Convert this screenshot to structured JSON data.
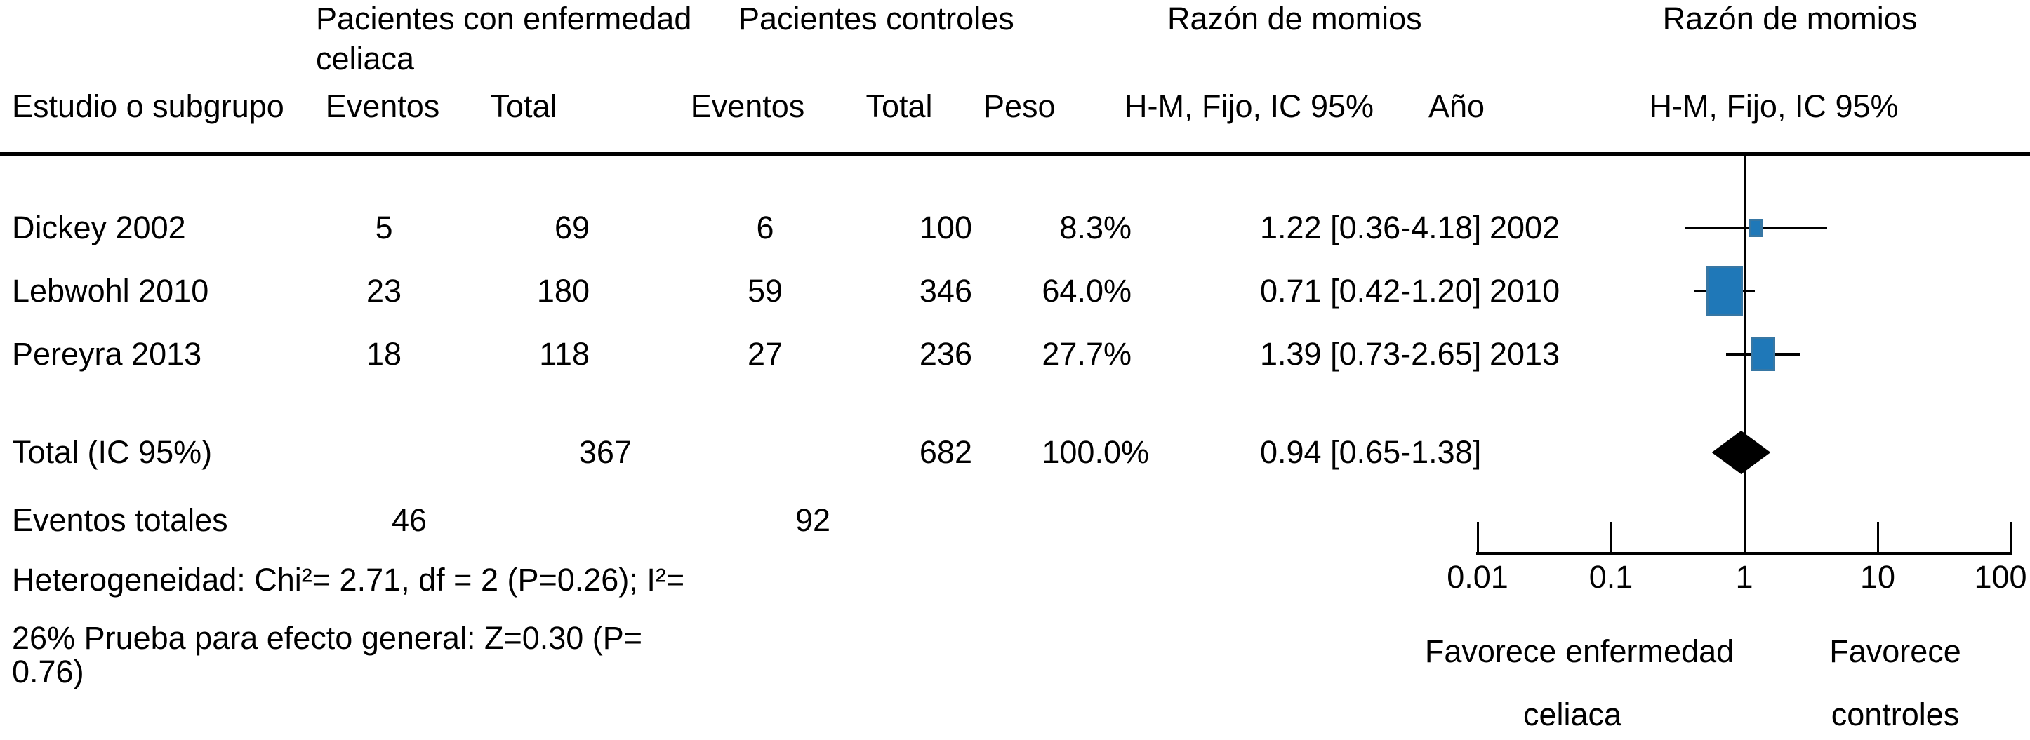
{
  "header": {
    "group_celiac_line1": "Pacientes con enfermedad",
    "group_celiac_line2": "celiaca",
    "group_control": "Pacientes controles",
    "or_title_left": "Razón de momios",
    "or_title_right": "Razón de momios",
    "study": "Estudio o subgrupo",
    "events_celiac": "Eventos",
    "total_celiac": "Total",
    "events_control": "Eventos",
    "total_control": "Total",
    "weight": "Peso",
    "method_left": "H-M, Fijo, IC 95%",
    "year": "Año",
    "method_right": "H-M, Fijo, IC 95%"
  },
  "colors": {
    "marker_blue": "#1f78b8",
    "marker_border": "#5c7588",
    "diamond": "#000000",
    "line": "#000000",
    "text": "#000000",
    "background": "#ffffff"
  },
  "chart_data": {
    "type": "forest",
    "x_scale": "log10",
    "xlim": [
      0.01,
      100
    ],
    "null_line": 1,
    "axis_ticks": [
      "0.01",
      "0.1",
      "1",
      "10",
      "100"
    ],
    "studies": [
      {
        "name": "Dickey 2002",
        "events_celiac": "5",
        "total_celiac": "69",
        "events_control": "6",
        "total_control": "100",
        "weight": "8.3%",
        "weight_pct": 8.3,
        "or": 1.22,
        "ci_low": 0.36,
        "ci_high": 4.18,
        "or_text": "1.22 [0.36-4.18]",
        "year": "2002"
      },
      {
        "name": "Lebwohl 2010",
        "events_celiac": "23",
        "total_celiac": "180",
        "events_control": "59",
        "total_control": "346",
        "weight": "64.0%",
        "weight_pct": 64.0,
        "or": 0.71,
        "ci_low": 0.42,
        "ci_high": 1.2,
        "or_text": "0.71 [0.42-1.20]",
        "year": "2010"
      },
      {
        "name": "Pereyra 2013",
        "events_celiac": "18",
        "total_celiac": "118",
        "events_control": "27",
        "total_control": "236",
        "weight": "27.7%",
        "weight_pct": 27.7,
        "or": 1.39,
        "ci_low": 0.73,
        "ci_high": 2.65,
        "or_text": "1.39 [0.73-2.65]",
        "year": "2013"
      }
    ],
    "total": {
      "label": "Total (IC 95%)",
      "total_celiac": "367",
      "total_control": "682",
      "weight": "100.0%",
      "or": 0.94,
      "ci_low": 0.65,
      "ci_high": 1.38,
      "or_text": "0.94 [0.65-1.38]"
    },
    "total_events": {
      "label": "Eventos totales",
      "events_celiac": "46",
      "events_control": "92"
    },
    "footnotes": [
      "Heterogeneidad: Chi²= 2.71, df = 2 (P=0.26); I²=",
      "26% Prueba para efecto general: Z=0.30 (P=",
      "0.76)"
    ],
    "favor": {
      "left_line1": "Favorece enfermedad",
      "left_line2": "celiaca",
      "right_line1": "Favorece",
      "right_line2": "controles"
    }
  }
}
